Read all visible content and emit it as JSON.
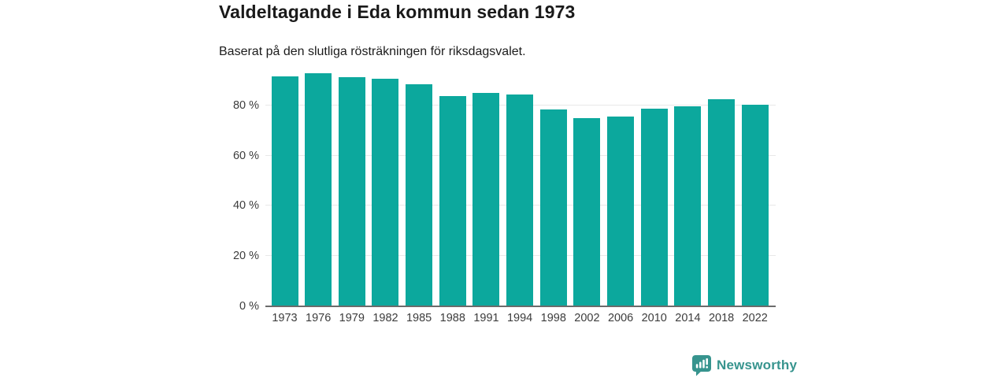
{
  "header": {
    "title": "Valdeltagande i Eda kommun sedan 1973",
    "subtitle": "Baserat på den slutliga rösträkningen för riksdagsvalet."
  },
  "chart_data": {
    "type": "bar",
    "title": "Valdeltagande i Eda kommun sedan 1973",
    "subtitle": "Baserat på den slutliga rösträkningen för riksdagsvalet.",
    "categories": [
      "1973",
      "1976",
      "1979",
      "1982",
      "1985",
      "1988",
      "1991",
      "1994",
      "1998",
      "2002",
      "2006",
      "2010",
      "2014",
      "2018",
      "2022"
    ],
    "values": [
      91.6,
      92.7,
      91.2,
      90.5,
      88.5,
      83.8,
      85.1,
      84.4,
      78.3,
      74.9,
      75.5,
      78.7,
      79.6,
      82.6,
      80.4
    ],
    "unit": "%",
    "xlabel": "",
    "ylabel": "",
    "yticks": [
      0,
      20,
      40,
      60,
      80
    ],
    "ytick_labels": [
      "0 %",
      "20 %",
      "40 %",
      "60 %",
      "80 %"
    ],
    "ylim": [
      0,
      94
    ],
    "grid": true,
    "legend": "none",
    "bar_color": "#0ca89d"
  },
  "branding": {
    "logo_text": "Newsworthy",
    "logo_icon": "newsworthy-badge-bar-chart-icon",
    "logo_color": "#37948e"
  },
  "colors": {
    "bar": "#0ca89d",
    "gridline": "#e8e8e8",
    "axis_line": "#6b6b6b",
    "tick_text": "#3c3c3c",
    "title_text": "#1a1a1a"
  }
}
